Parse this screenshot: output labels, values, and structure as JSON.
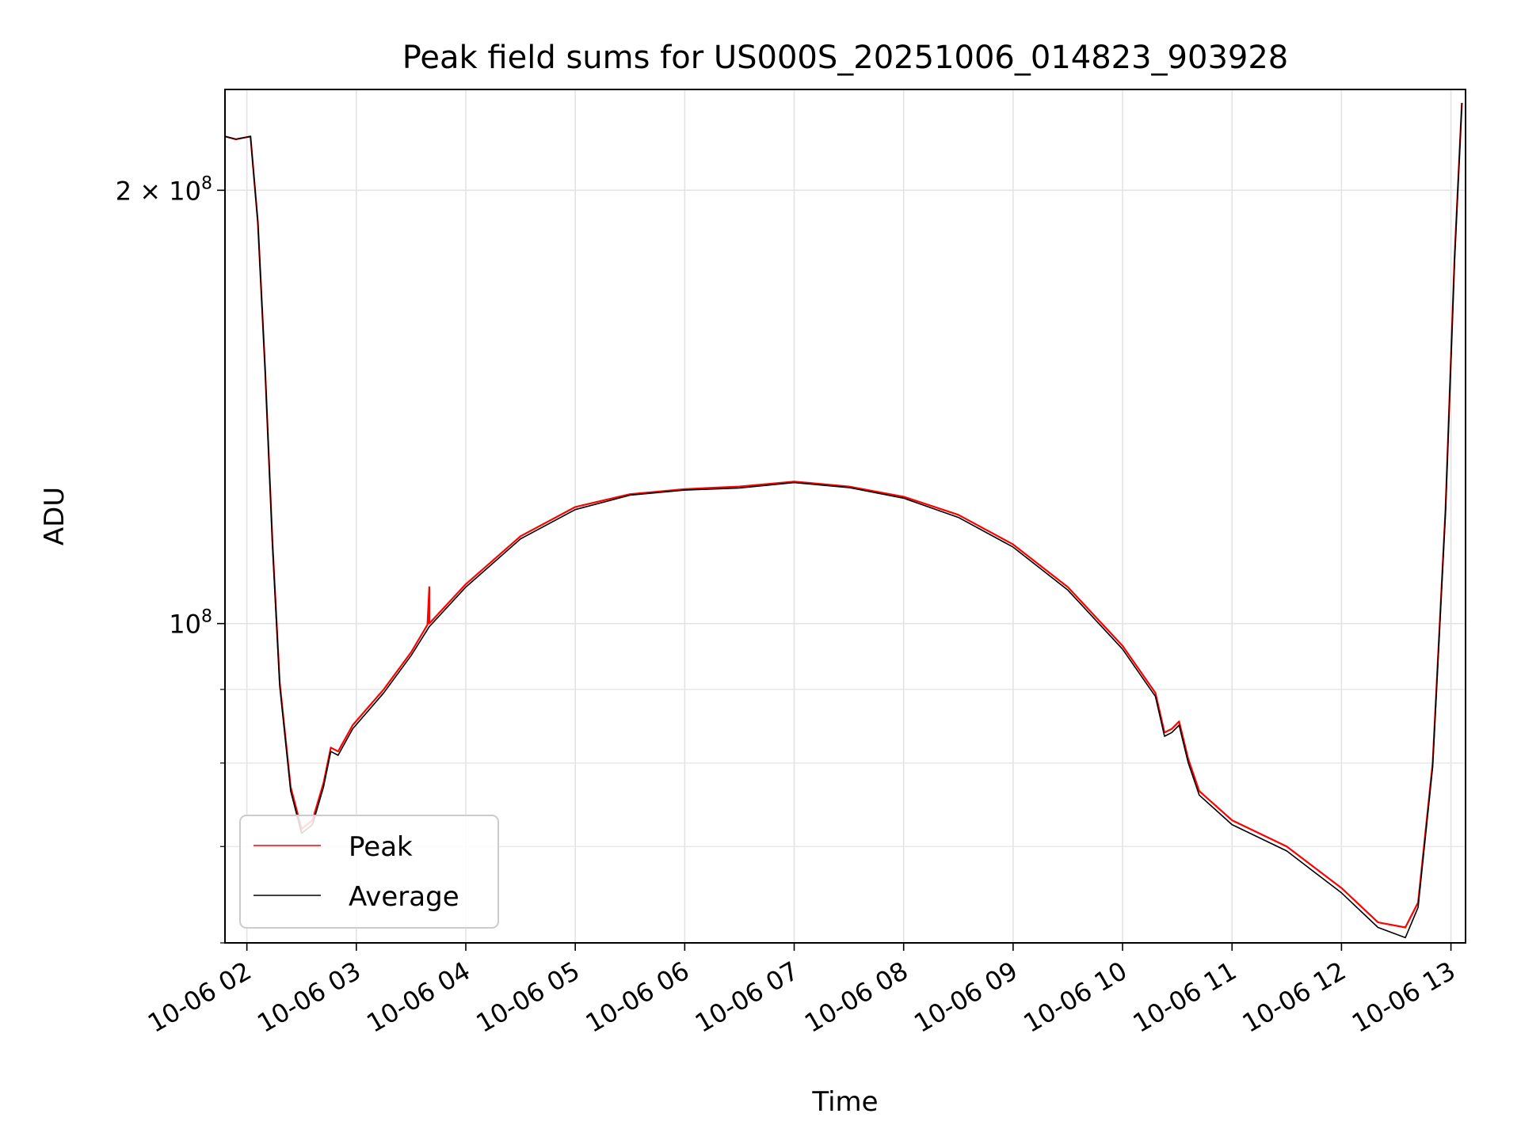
{
  "chart_data": {
    "type": "line",
    "title": "Peak field sums for US000S_20251006_014823_903928",
    "xlabel": "Time",
    "ylabel": "ADU",
    "yscale": "log",
    "xlim": [
      "2025-10-06T01:48",
      "2025-10-06T13:08"
    ],
    "ylim": [
      60000000,
      235000000
    ],
    "x_ticks": [
      "10-06 02",
      "10-06 03",
      "10-06 04",
      "10-06 05",
      "10-06 06",
      "10-06 07",
      "10-06 08",
      "10-06 09",
      "10-06 10",
      "10-06 11",
      "10-06 12",
      "10-06 13"
    ],
    "y_ticks": [
      {
        "value": 100000000,
        "label": "10^8",
        "base": "10",
        "exp": "8"
      },
      {
        "value": 200000000,
        "label": "2×10^8",
        "base": "2 × 10",
        "exp": "8"
      }
    ],
    "y_minor_ticks": [
      60000000,
      70000000,
      80000000,
      90000000
    ],
    "grid": true,
    "legend": {
      "position": "lower-left",
      "entries": [
        "Peak",
        "Average"
      ]
    },
    "series": [
      {
        "name": "Peak",
        "color": "#ff0000",
        "points": [
          [
            "2025-10-06T01:48",
            218000000
          ],
          [
            "2025-10-06T01:54",
            217000000
          ],
          [
            "2025-10-06T02:02",
            218000000
          ],
          [
            "2025-10-06T02:06",
            190000000
          ],
          [
            "2025-10-06T02:10",
            150000000
          ],
          [
            "2025-10-06T02:14",
            114000000
          ],
          [
            "2025-10-06T02:18",
            91000000
          ],
          [
            "2025-10-06T02:24",
            77000000
          ],
          [
            "2025-10-06T02:30",
            72000000
          ],
          [
            "2025-10-06T02:36",
            73000000
          ],
          [
            "2025-10-06T02:42",
            77500000
          ],
          [
            "2025-10-06T02:46",
            82000000
          ],
          [
            "2025-10-06T02:50",
            81500000
          ],
          [
            "2025-10-06T02:58",
            85000000
          ],
          [
            "2025-10-06T03:15",
            90000000
          ],
          [
            "2025-10-06T03:30",
            95500000
          ],
          [
            "2025-10-06T03:39",
            99800000
          ],
          [
            "2025-10-06T03:40",
            106000000
          ],
          [
            "2025-10-06T03:40",
            100000000
          ],
          [
            "2025-10-06T04:00",
            106500000
          ],
          [
            "2025-10-06T04:30",
            115000000
          ],
          [
            "2025-10-06T05:00",
            120500000
          ],
          [
            "2025-10-06T05:30",
            123000000
          ],
          [
            "2025-10-06T06:00",
            124000000
          ],
          [
            "2025-10-06T06:30",
            124500000
          ],
          [
            "2025-10-06T07:00",
            125500000
          ],
          [
            "2025-10-06T07:30",
            124500000
          ],
          [
            "2025-10-06T08:00",
            122500000
          ],
          [
            "2025-10-06T08:30",
            119000000
          ],
          [
            "2025-10-06T09:00",
            113500000
          ],
          [
            "2025-10-06T09:30",
            106000000
          ],
          [
            "2025-10-06T10:00",
            96500000
          ],
          [
            "2025-10-06T10:18",
            89500000
          ],
          [
            "2025-10-06T10:23",
            84000000
          ],
          [
            "2025-10-06T10:27",
            84500000
          ],
          [
            "2025-10-06T10:31",
            85500000
          ],
          [
            "2025-10-06T10:36",
            80500000
          ],
          [
            "2025-10-06T10:42",
            76500000
          ],
          [
            "2025-10-06T11:00",
            73000000
          ],
          [
            "2025-10-06T11:30",
            70000000
          ],
          [
            "2025-10-06T12:00",
            65500000
          ],
          [
            "2025-10-06T12:20",
            62000000
          ],
          [
            "2025-10-06T12:35",
            61500000
          ],
          [
            "2025-10-06T12:42",
            64000000
          ],
          [
            "2025-10-06T12:50",
            80000000
          ],
          [
            "2025-10-06T12:57",
            120000000
          ],
          [
            "2025-10-06T13:02",
            180000000
          ],
          [
            "2025-10-06T13:06",
            230000000
          ]
        ]
      },
      {
        "name": "Average",
        "color": "#000000",
        "points": [
          [
            "2025-10-06T01:48",
            218000000
          ],
          [
            "2025-10-06T01:54",
            217000000
          ],
          [
            "2025-10-06T02:02",
            218000000
          ],
          [
            "2025-10-06T02:06",
            190000000
          ],
          [
            "2025-10-06T02:10",
            150000000
          ],
          [
            "2025-10-06T02:14",
            113500000
          ],
          [
            "2025-10-06T02:18",
            90500000
          ],
          [
            "2025-10-06T02:24",
            76500000
          ],
          [
            "2025-10-06T02:30",
            71500000
          ],
          [
            "2025-10-06T02:36",
            72500000
          ],
          [
            "2025-10-06T02:42",
            77000000
          ],
          [
            "2025-10-06T02:46",
            81500000
          ],
          [
            "2025-10-06T02:50",
            81000000
          ],
          [
            "2025-10-06T02:58",
            84500000
          ],
          [
            "2025-10-06T03:15",
            89500000
          ],
          [
            "2025-10-06T03:30",
            95000000
          ],
          [
            "2025-10-06T03:40",
            99500000
          ],
          [
            "2025-10-06T04:00",
            106000000
          ],
          [
            "2025-10-06T04:30",
            114500000
          ],
          [
            "2025-10-06T05:00",
            120000000
          ],
          [
            "2025-10-06T05:30",
            122800000
          ],
          [
            "2025-10-06T06:00",
            123800000
          ],
          [
            "2025-10-06T06:30",
            124200000
          ],
          [
            "2025-10-06T07:00",
            125300000
          ],
          [
            "2025-10-06T07:30",
            124300000
          ],
          [
            "2025-10-06T08:00",
            122200000
          ],
          [
            "2025-10-06T08:30",
            118500000
          ],
          [
            "2025-10-06T09:00",
            113000000
          ],
          [
            "2025-10-06T09:30",
            105500000
          ],
          [
            "2025-10-06T10:00",
            96000000
          ],
          [
            "2025-10-06T10:18",
            89000000
          ],
          [
            "2025-10-06T10:23",
            83500000
          ],
          [
            "2025-10-06T10:27",
            84000000
          ],
          [
            "2025-10-06T10:31",
            85000000
          ],
          [
            "2025-10-06T10:36",
            80000000
          ],
          [
            "2025-10-06T10:42",
            76000000
          ],
          [
            "2025-10-06T11:00",
            72500000
          ],
          [
            "2025-10-06T11:30",
            69500000
          ],
          [
            "2025-10-06T12:00",
            65000000
          ],
          [
            "2025-10-06T12:20",
            61500000
          ],
          [
            "2025-10-06T12:35",
            60500000
          ],
          [
            "2025-10-06T12:42",
            63500000
          ],
          [
            "2025-10-06T12:50",
            79500000
          ],
          [
            "2025-10-06T12:57",
            119500000
          ],
          [
            "2025-10-06T13:02",
            179000000
          ],
          [
            "2025-10-06T13:06",
            230000000
          ]
        ]
      }
    ]
  }
}
